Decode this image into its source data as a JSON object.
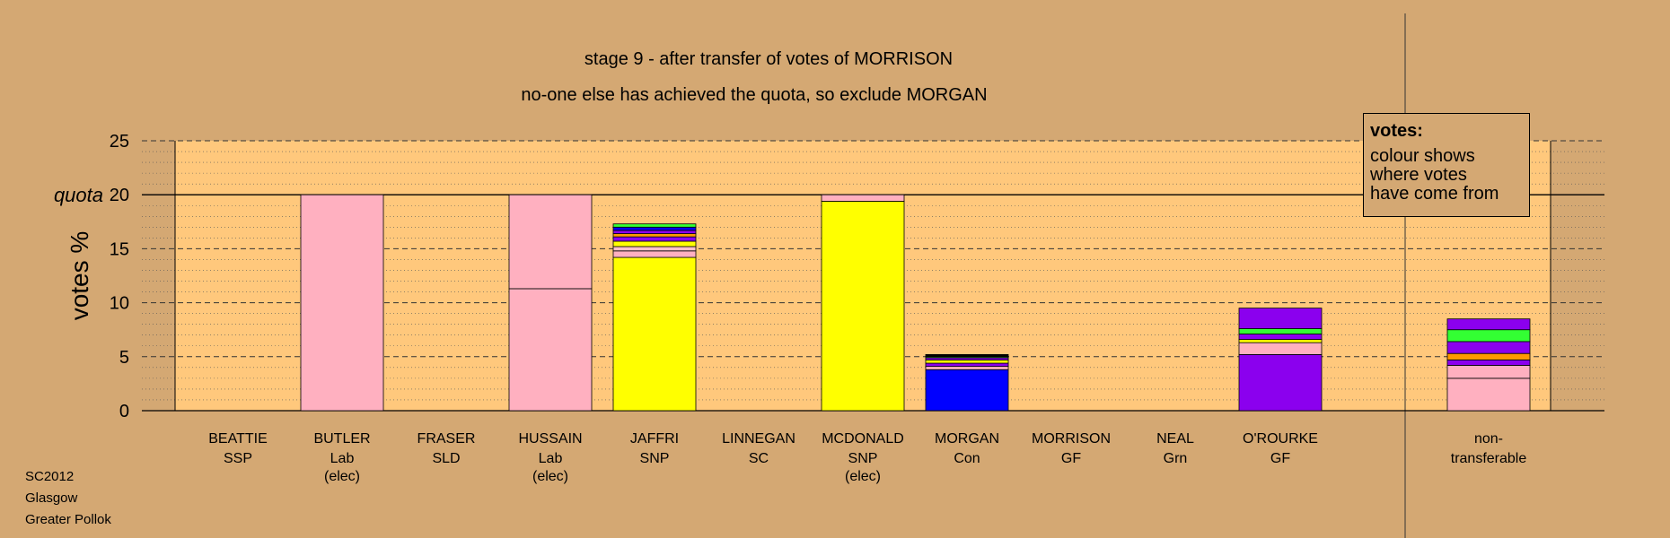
{
  "chart_data": {
    "type": "bar",
    "title": "stage 9 - after transfer of votes of MORRISON",
    "subtitle": "no-one else has achieved the quota, so exclude MORGAN",
    "ylabel": "votes %",
    "quota_label": "quota",
    "quota": 20,
    "ylim": [
      0,
      25
    ],
    "yticks": [
      0,
      5,
      10,
      15,
      20,
      25
    ],
    "grid": true,
    "candidates": [
      {
        "name": "BEATTIE",
        "party": "SSP",
        "status": "",
        "segments": []
      },
      {
        "name": "BUTLER",
        "party": "Lab",
        "status": "(elec)",
        "segments": [
          {
            "value": 20.0,
            "color": "#FFB0C0"
          }
        ]
      },
      {
        "name": "FRASER",
        "party": "SLD",
        "status": "",
        "segments": []
      },
      {
        "name": "HUSSAIN",
        "party": "Lab",
        "status": "(elec)",
        "segments": [
          {
            "value": 11.3,
            "color": "#FFB0C0"
          },
          {
            "value": 8.7,
            "color": "#FFB0C0"
          }
        ]
      },
      {
        "name": "JAFFRI",
        "party": "SNP",
        "status": "",
        "segments": [
          {
            "value": 14.2,
            "color": "#FFFF00"
          },
          {
            "value": 0.6,
            "color": "#FFB0C0"
          },
          {
            "value": 0.4,
            "color": "#FFC0CB"
          },
          {
            "value": 0.5,
            "color": "#FFFF00"
          },
          {
            "value": 0.4,
            "color": "#8B00EE"
          },
          {
            "value": 0.3,
            "color": "#FF9900"
          },
          {
            "value": 0.3,
            "color": "#8B00EE"
          },
          {
            "value": 0.3,
            "color": "#0000FF"
          },
          {
            "value": 0.3,
            "color": "#33FF33"
          }
        ]
      },
      {
        "name": "LINNEGAN",
        "party": "SC",
        "status": "",
        "segments": []
      },
      {
        "name": "MCDONALD",
        "party": "SNP",
        "status": "(elec)",
        "segments": [
          {
            "value": 19.4,
            "color": "#FFFF00"
          },
          {
            "value": 0.6,
            "color": "#FFB0C0"
          }
        ]
      },
      {
        "name": "MORGAN",
        "party": "Con",
        "status": "",
        "segments": [
          {
            "value": 3.8,
            "color": "#0000FF"
          },
          {
            "value": 0.3,
            "color": "#FFB0C0"
          },
          {
            "value": 0.3,
            "color": "#8B00EE"
          },
          {
            "value": 0.3,
            "color": "#FFFF00"
          },
          {
            "value": 0.2,
            "color": "#8B00EE"
          },
          {
            "value": 0.1,
            "color": "#33FF33"
          },
          {
            "value": 0.2,
            "color": "#000000"
          }
        ]
      },
      {
        "name": "MORRISON",
        "party": "GF",
        "status": "",
        "segments": []
      },
      {
        "name": "NEAL",
        "party": "Grn",
        "status": "",
        "segments": []
      },
      {
        "name": "O'ROURKE",
        "party": "GF",
        "status": "",
        "segments": [
          {
            "value": 5.2,
            "color": "#8B00EE"
          },
          {
            "value": 1.1,
            "color": "#FFB0C0"
          },
          {
            "value": 0.3,
            "color": "#FFFF00"
          },
          {
            "value": 0.5,
            "color": "#8B00EE"
          },
          {
            "value": 0.5,
            "color": "#33FF33"
          },
          {
            "value": 1.9,
            "color": "#8B00EE"
          }
        ]
      },
      {
        "name": "non-",
        "party": "transferable",
        "status": "",
        "separate": true,
        "segments": [
          {
            "value": 3.0,
            "color": "#FFB0C0"
          },
          {
            "value": 1.2,
            "color": "#FFB0C0"
          },
          {
            "value": 0.5,
            "color": "#8B00EE"
          },
          {
            "value": 0.6,
            "color": "#FF9900"
          },
          {
            "value": 1.1,
            "color": "#8B00EE"
          },
          {
            "value": 1.1,
            "color": "#33FF33"
          },
          {
            "value": 1.0,
            "color": "#8B00EE"
          }
        ]
      }
    ],
    "colors": {
      "background": "#D4A873",
      "plot_area": "#FFC87C"
    }
  },
  "legend": {
    "title": "votes:",
    "lines": [
      "colour shows",
      "where votes",
      "have come from"
    ]
  },
  "footer": {
    "line1": "SC2012",
    "line2": "Glasgow",
    "line3": "Greater Pollok"
  }
}
